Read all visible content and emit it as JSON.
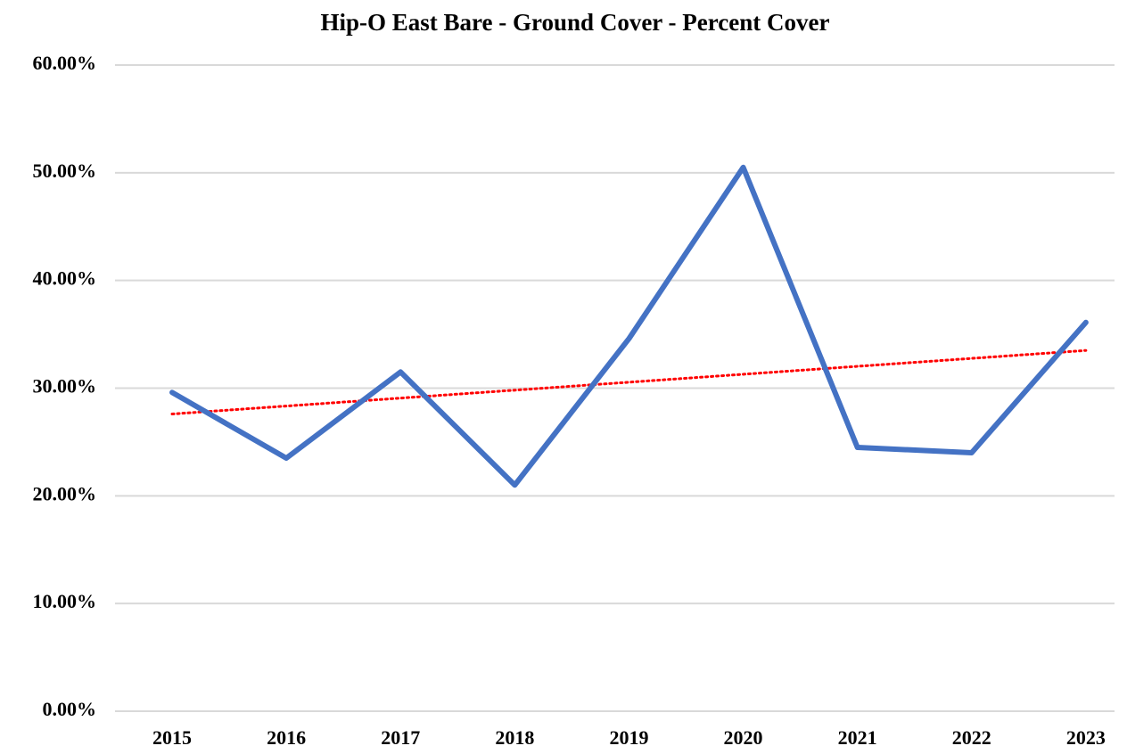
{
  "chart_data": {
    "type": "line",
    "title": "Hip-O East Bare - Ground Cover - Percent Cover",
    "categories": [
      "2015",
      "2016",
      "2017",
      "2018",
      "2019",
      "2020",
      "2021",
      "2022",
      "2023"
    ],
    "values": [
      29.6,
      23.5,
      31.5,
      21.0,
      34.6,
      50.5,
      24.5,
      24.0,
      36.1
    ],
    "color": "#4472c4",
    "trendline": {
      "values": [
        27.6,
        33.5
      ],
      "color": "#ff0000"
    },
    "ylim": [
      0,
      60
    ],
    "yticks": [
      {
        "value": 0,
        "label": "0.00%"
      },
      {
        "value": 10,
        "label": "10.00%"
      },
      {
        "value": 20,
        "label": "20.00%"
      },
      {
        "value": 30,
        "label": "30.00%"
      },
      {
        "value": 40,
        "label": "40.00%"
      },
      {
        "value": 50,
        "label": "50.00%"
      },
      {
        "value": 60,
        "label": "60.00%"
      }
    ],
    "grid": true
  }
}
